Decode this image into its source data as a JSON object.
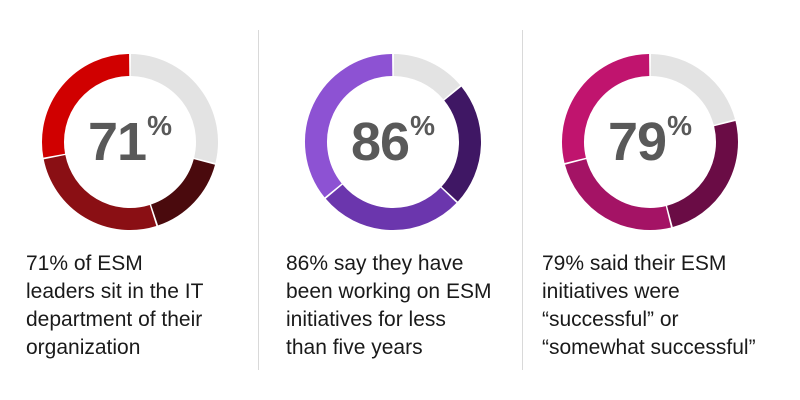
{
  "chart_data": [
    {
      "type": "pie",
      "value": 71,
      "value_label": "71",
      "percent_sign": "%",
      "caption": "71% of ESM\nleaders sit in the IT\ndepartment of their\norganization",
      "remainder_color": "#e3e3e3",
      "segments": [
        {
          "value": 28,
          "color": "#d00000"
        },
        {
          "value": 27,
          "color": "#8a0f14"
        },
        {
          "value": 16,
          "color": "#4a0a0d"
        }
      ]
    },
    {
      "type": "pie",
      "value": 86,
      "value_label": "86",
      "percent_sign": "%",
      "caption": "86% say they have\nbeen working on ESM\ninitiatives for less\nthan five years",
      "remainder_color": "#e3e3e3",
      "segments": [
        {
          "value": 36,
          "color": "#8d52d3"
        },
        {
          "value": 27,
          "color": "#6b36ad"
        },
        {
          "value": 23,
          "color": "#3f1764"
        }
      ]
    },
    {
      "type": "pie",
      "value": 79,
      "value_label": "79",
      "percent_sign": "%",
      "caption": "79% said their ESM\ninitiatives were\n“successful” or\n“somewhat successful”",
      "remainder_color": "#e3e3e3",
      "segments": [
        {
          "value": 29,
          "color": "#c0146e"
        },
        {
          "value": 25,
          "color": "#a41365"
        },
        {
          "value": 25,
          "color": "#6a0c45"
        }
      ]
    }
  ]
}
